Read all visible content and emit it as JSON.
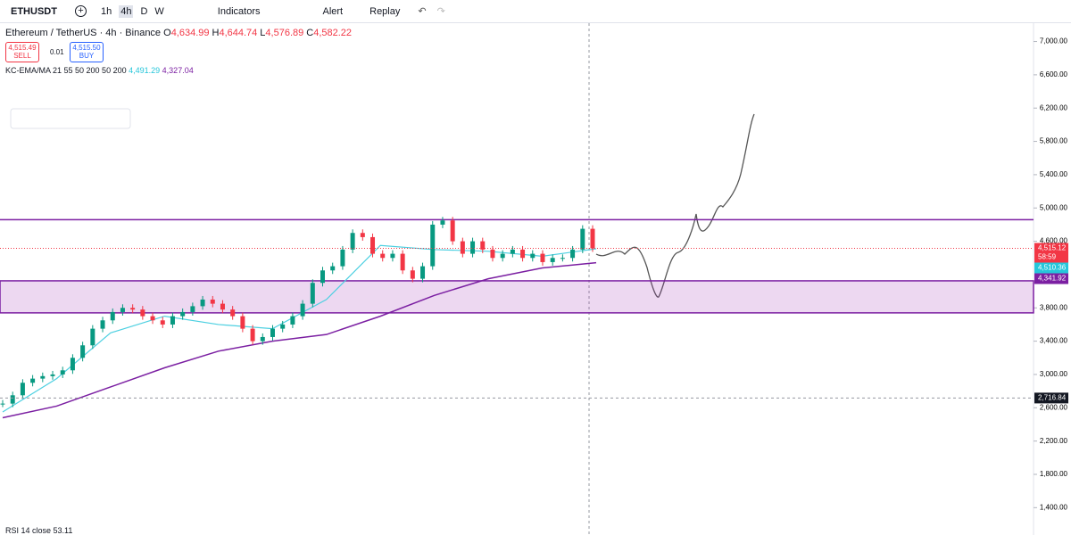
{
  "toolbar": {
    "symbol": "ETHUSDT",
    "intervals": [
      "1h",
      "4h",
      "D",
      "W"
    ],
    "indicators": "Indicators",
    "alert": "Alert",
    "replay": "Replay"
  },
  "legend": {
    "title": "Ethereum / TetherUS · 4h · Binance",
    "ohlc": [
      {
        "key": "O",
        "value": "4,634.99"
      },
      {
        "key": "H",
        "value": "4,644.74"
      },
      {
        "key": "L",
        "value": "4,576.89"
      },
      {
        "key": "C",
        "value": "4,582.22"
      }
    ],
    "sell_price": "4,515.49",
    "sell": "SELL",
    "spread": "0.01",
    "buy_price": "4,515.50",
    "buy": "BUY",
    "indicator": "KC-EMA/MA 21 55 50 200 50 200",
    "indicator_values": [
      "4,491.29",
      "4,327.04"
    ],
    "rsi": "RSI 14 close",
    "rsi_value": "53.11"
  },
  "price_axis": {
    "ylim": [
      1200,
      7220
    ],
    "ticks": [
      {
        "value": 7000,
        "label": "7,000.00"
      },
      {
        "value": 6600,
        "label": "6,600.00"
      },
      {
        "value": 6200,
        "label": "6,200.00"
      },
      {
        "value": 5800,
        "label": "5,800.00"
      },
      {
        "value": 5400,
        "label": "5,400.00"
      },
      {
        "value": 5000,
        "label": "5,000.00"
      },
      {
        "value": 4600,
        "label": "4,600.00"
      },
      {
        "value": 3800,
        "label": "3,800.00"
      },
      {
        "value": 3400,
        "label": "3,400.00"
      },
      {
        "value": 3000,
        "label": "3,000.00"
      },
      {
        "value": 2600,
        "label": "2,600.00"
      },
      {
        "value": 2200,
        "label": "2,200.00"
      },
      {
        "value": 1800,
        "label": "1,800.00"
      },
      {
        "value": 1400,
        "label": "1,400.00"
      }
    ]
  },
  "closes": [
    2650,
    2750,
    2900,
    2950,
    2980,
    3000,
    3050,
    3200,
    3350,
    3550,
    3650,
    3750,
    3800,
    3780,
    3700,
    3650,
    3600,
    3700,
    3750,
    3820,
    3900,
    3850,
    3780,
    3700,
    3550,
    3400,
    3450,
    3550,
    3600,
    3700,
    3850,
    4100,
    4250,
    4300,
    4500,
    4700,
    4650,
    4450,
    4400,
    4450,
    4250,
    4150,
    4300,
    4800,
    4850,
    4600,
    4450,
    4600,
    4500,
    4400,
    4450,
    4500,
    4400,
    4450,
    4350,
    4400,
    4400,
    4500,
    4750,
    4515
  ],
  "ema": [
    2550,
    2950,
    3500,
    3700,
    3600,
    3550,
    3900,
    4550,
    4500,
    4480,
    4420,
    4510
  ],
  "ma": [
    2480,
    2620,
    2850,
    3080,
    3280,
    3400,
    3480,
    3700,
    3950,
    4150,
    4280,
    4342
  ],
  "resistance": 4860,
  "zone": [
    4125,
    3740
  ],
  "price_labels": [
    {
      "value": 4515.12,
      "label": "4,515.12",
      "sub": "58:59",
      "color": "#f23645"
    },
    {
      "value": 4510.36,
      "label": "4,510.36",
      "color": "#26c6da"
    },
    {
      "value": 4341.92,
      "label": "4,341.92",
      "color": "#7b1fa2"
    },
    {
      "value": 2716.84,
      "label": "2,716.84",
      "color": "#131722"
    }
  ]
}
